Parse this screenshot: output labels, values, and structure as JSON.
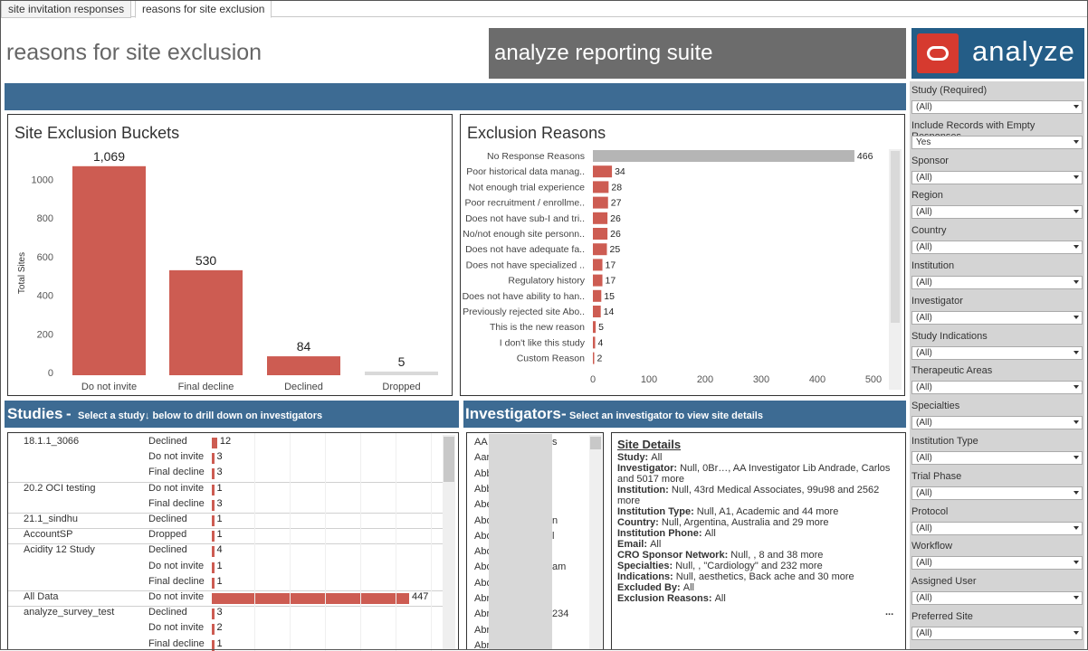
{
  "tabs": [
    {
      "label": "site invitation responses"
    },
    {
      "label": "reasons for site exclusion"
    }
  ],
  "header": {
    "title": "reasons for site exclusion",
    "suite": "analyze reporting suite",
    "logo_text": "analyze"
  },
  "buckets_chart": {
    "title": "Site Exclusion Buckets",
    "ylabel": "Total Sites"
  },
  "reasons_chart": {
    "title": "Exclusion Reasons"
  },
  "chart_data": [
    {
      "type": "bar",
      "title": "Site Exclusion Buckets",
      "ylabel": "Total Sites",
      "xlabel": "",
      "categories": [
        "Do not invite",
        "Final decline",
        "Declined",
        "Dropped"
      ],
      "values": [
        1069,
        530,
        84,
        5
      ],
      "value_labels": [
        "1,069",
        "530",
        "84",
        "5"
      ],
      "ylim": [
        0,
        1100
      ],
      "yticks": [
        0,
        200,
        400,
        600,
        800,
        1000
      ],
      "colors": [
        "#cd5c52",
        "#cd5c52",
        "#cd5c52",
        "#cd5c52"
      ]
    },
    {
      "type": "bar",
      "orientation": "horizontal",
      "title": "Exclusion Reasons",
      "categories": [
        "No Response Reasons",
        "Poor historical data manag..",
        "Not enough trial experience",
        "Poor recruitment / enrollme..",
        "Does not have sub-I and tri..",
        "No/not enough site personn..",
        "Does not have adequate fa..",
        "Does not have specialized ..",
        "Regulatory history",
        "Does not have ability to han..",
        "Previously rejected site Abo..",
        "This is the new reason",
        "I don't like this study",
        "Custom Reason"
      ],
      "values": [
        466,
        34,
        28,
        27,
        26,
        26,
        25,
        17,
        17,
        15,
        14,
        5,
        4,
        2
      ],
      "xlim": [
        0,
        520
      ],
      "xticks": [
        0,
        100,
        200,
        300,
        400,
        500
      ],
      "colors": {
        "highlight": "#b5b5b5",
        "bar": "#cd5c52"
      }
    }
  ],
  "studies": {
    "title": "Studies",
    "subtitle": "Select a study↓ below to drill down on investigators",
    "rows": [
      {
        "name": "18.1.1_3066",
        "status": "Declined",
        "value": 12
      },
      {
        "name": "",
        "status": "Do not invite",
        "value": 3
      },
      {
        "name": "",
        "status": "Final decline",
        "value": 3
      },
      {
        "name": "20.2 OCI testing",
        "status": "Do not invite",
        "value": 1
      },
      {
        "name": "",
        "status": "Final decline",
        "value": 3
      },
      {
        "name": "21.1_sindhu",
        "status": "Declined",
        "value": 1
      },
      {
        "name": "AccountSP",
        "status": "Dropped",
        "value": 1
      },
      {
        "name": "Acidity 12 Study",
        "status": "Declined",
        "value": 4
      },
      {
        "name": "",
        "status": "Do not invite",
        "value": 1
      },
      {
        "name": "",
        "status": "Final decline",
        "value": 1
      },
      {
        "name": "All Data",
        "status": "Do not invite",
        "value": 447
      },
      {
        "name": "analyze_survey_test",
        "status": "Declined",
        "value": 3
      },
      {
        "name": "",
        "status": "Do not invite",
        "value": 2
      },
      {
        "name": "",
        "status": "Final decline",
        "value": 1
      }
    ],
    "max_value": 447
  },
  "investigators": {
    "title": "Investigators",
    "subtitle": "Select an investigator to view site details",
    "items": [
      "AA",
      "Aar",
      "Abb",
      "Abb",
      "Abe",
      "Abo",
      "Abo",
      "Abo",
      "Abo",
      "Abo",
      "Abr",
      "Abr",
      "Abr",
      "Abr"
    ],
    "suffixes": [
      "s",
      "",
      "",
      "",
      "",
      "n",
      "l",
      "",
      "am",
      "",
      "",
      "234",
      "",
      ""
    ]
  },
  "site_details": {
    "heading": "Site Details",
    "fields": [
      {
        "label": "Study:",
        "value": "All"
      },
      {
        "label": "Investigator:",
        "value": "Null, 0Br…, AA Investigator Lib Andrade, Carlos and 5017 more"
      },
      {
        "label": "Institution:",
        "value": "Null, 43rd Medical Associates, 99u98 and 2562 more"
      },
      {
        "label": "Institution Type:",
        "value": "Null, A1, Academic and 44 more"
      },
      {
        "label": "Country:",
        "value": "Null, Argentina, Australia and 29 more"
      },
      {
        "label": "Institution Phone:",
        "value": "All"
      },
      {
        "label": "Email:",
        "value": "All"
      },
      {
        "label": "CRO Sponsor Network:",
        "value": "Null, , 8 and 38 more"
      },
      {
        "label": "Specialties:",
        "value": "Null, , \"Cardiology\" and 232 more"
      },
      {
        "label": "Indications:",
        "value": "Null, aesthetics, Back ache and 30 more"
      },
      {
        "label": "Excluded By:",
        "value": "All"
      },
      {
        "label": "Exclusion Reasons:",
        "value": "All"
      }
    ],
    "more": "..."
  },
  "filters": [
    {
      "label": "Study (Required)",
      "value": "(All)"
    },
    {
      "label": "Include Records with Empty Responses",
      "value": "Yes"
    },
    {
      "label": "Sponsor",
      "value": "(All)"
    },
    {
      "label": "Region",
      "value": "(All)"
    },
    {
      "label": "Country",
      "value": "(All)"
    },
    {
      "label": "Institution",
      "value": "(All)"
    },
    {
      "label": "Investigator",
      "value": "(All)"
    },
    {
      "label": "Study Indications",
      "value": "(All)"
    },
    {
      "label": "Therapeutic Areas",
      "value": "(All)"
    },
    {
      "label": "Specialties",
      "value": "(All)"
    },
    {
      "label": "Institution Type",
      "value": "(All)"
    },
    {
      "label": "Trial Phase",
      "value": "(All)"
    },
    {
      "label": "Protocol",
      "value": "(All)"
    },
    {
      "label": "Workflow",
      "value": "(All)"
    },
    {
      "label": "Assigned User",
      "value": "(All)"
    },
    {
      "label": "Preferred Site",
      "value": "(All)"
    }
  ]
}
